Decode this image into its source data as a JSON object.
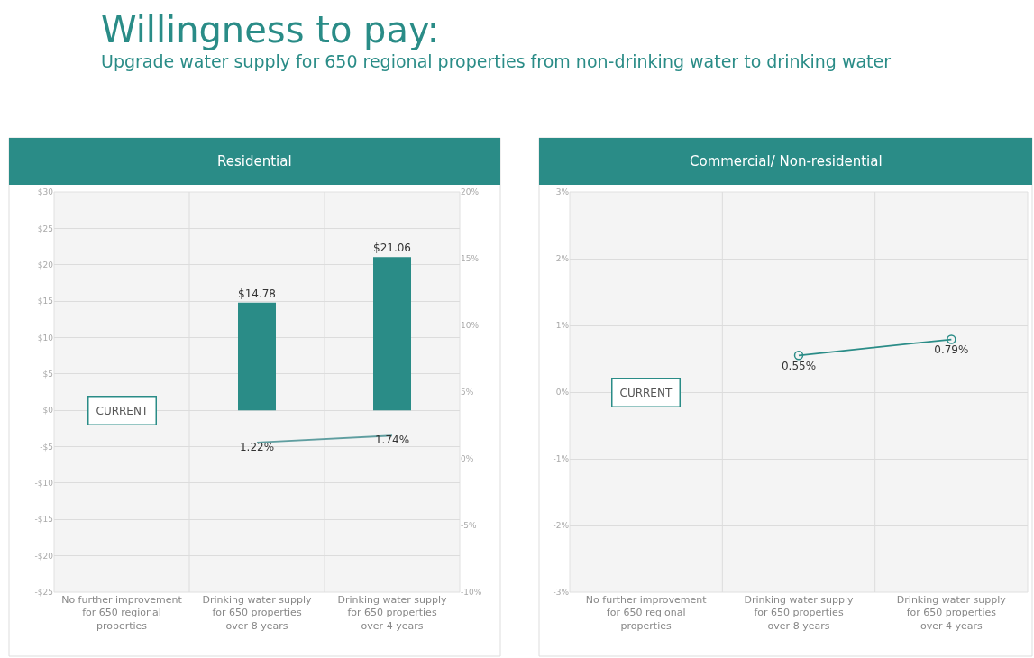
{
  "chart_data": [
    {
      "type": "other",
      "title": "Willingness to pay:",
      "subtitle": "Upgrade water supply for 650 regional properties from non-drinking water to drinking water"
    },
    {
      "type": "bar",
      "title": "Residential",
      "categories": [
        "No further improvement for 650 regional properties",
        "Drinking water supply for 650 properties over 8 years",
        "Drinking water supply for 650 properties over 4 years"
      ],
      "series": [
        {
          "type": "bar",
          "color": "#2a8c87",
          "values": [
            null,
            14.78,
            21.06
          ],
          "value_labels": [
            null,
            "$14.78",
            "$21.06"
          ]
        },
        {
          "type": "line",
          "axis": "y2",
          "color": "#5f9ea0",
          "values": [
            null,
            1.22,
            1.74
          ],
          "value_labels": [
            null,
            "1.22%",
            "1.74%"
          ]
        }
      ],
      "ylim": [
        -25,
        30
      ],
      "yticks": [
        {
          "value": 30,
          "label": "$30"
        },
        {
          "value": 25,
          "label": "$25"
        },
        {
          "value": 20,
          "label": "$20"
        },
        {
          "value": 15,
          "label": "$15"
        },
        {
          "value": 10,
          "label": "$10"
        },
        {
          "value": 5,
          "label": "$5"
        },
        {
          "value": 0,
          "label": "$0"
        },
        {
          "value": -5,
          "label": "-$5"
        },
        {
          "value": -10,
          "label": "-$10"
        },
        {
          "value": -15,
          "label": "-$15"
        },
        {
          "value": -20,
          "label": "-$20"
        },
        {
          "value": -25,
          "label": "-$25"
        }
      ],
      "y2lim": [
        -10,
        20
      ],
      "y2ticks": [
        {
          "value": 20,
          "label": "20%"
        },
        {
          "value": 15,
          "label": "15%"
        },
        {
          "value": 10,
          "label": "10%"
        },
        {
          "value": 5,
          "label": "5%"
        },
        {
          "value": 0,
          "label": "0%"
        },
        {
          "value": -5,
          "label": "-5%"
        },
        {
          "value": -10,
          "label": "-10%"
        }
      ],
      "grid": true,
      "marker": "none",
      "annotations": [
        "CURRENT"
      ]
    },
    {
      "type": "line",
      "title": "Commercial/ Non-residential",
      "categories": [
        "No further improvement for 650 regional properties",
        "Drinking water supply for 650 properties over 8 years",
        "Drinking water supply for 650 properties over 4 years"
      ],
      "series": [
        {
          "type": "line",
          "color": "#2a8c87",
          "values": [
            null,
            0.55,
            0.79
          ],
          "value_labels": [
            null,
            "0.55%",
            "0.79%"
          ]
        }
      ],
      "ylim": [
        -3,
        3
      ],
      "yticks": [
        {
          "value": 3,
          "label": "3%"
        },
        {
          "value": 2,
          "label": "2%"
        },
        {
          "value": 1,
          "label": "1%"
        },
        {
          "value": 0,
          "label": "0%"
        },
        {
          "value": -1,
          "label": "-1%"
        },
        {
          "value": -2,
          "label": "-2%"
        },
        {
          "value": -3,
          "label": "-3%"
        }
      ],
      "grid": true,
      "marker": "circle",
      "annotations": [
        "CURRENT"
      ]
    }
  ]
}
